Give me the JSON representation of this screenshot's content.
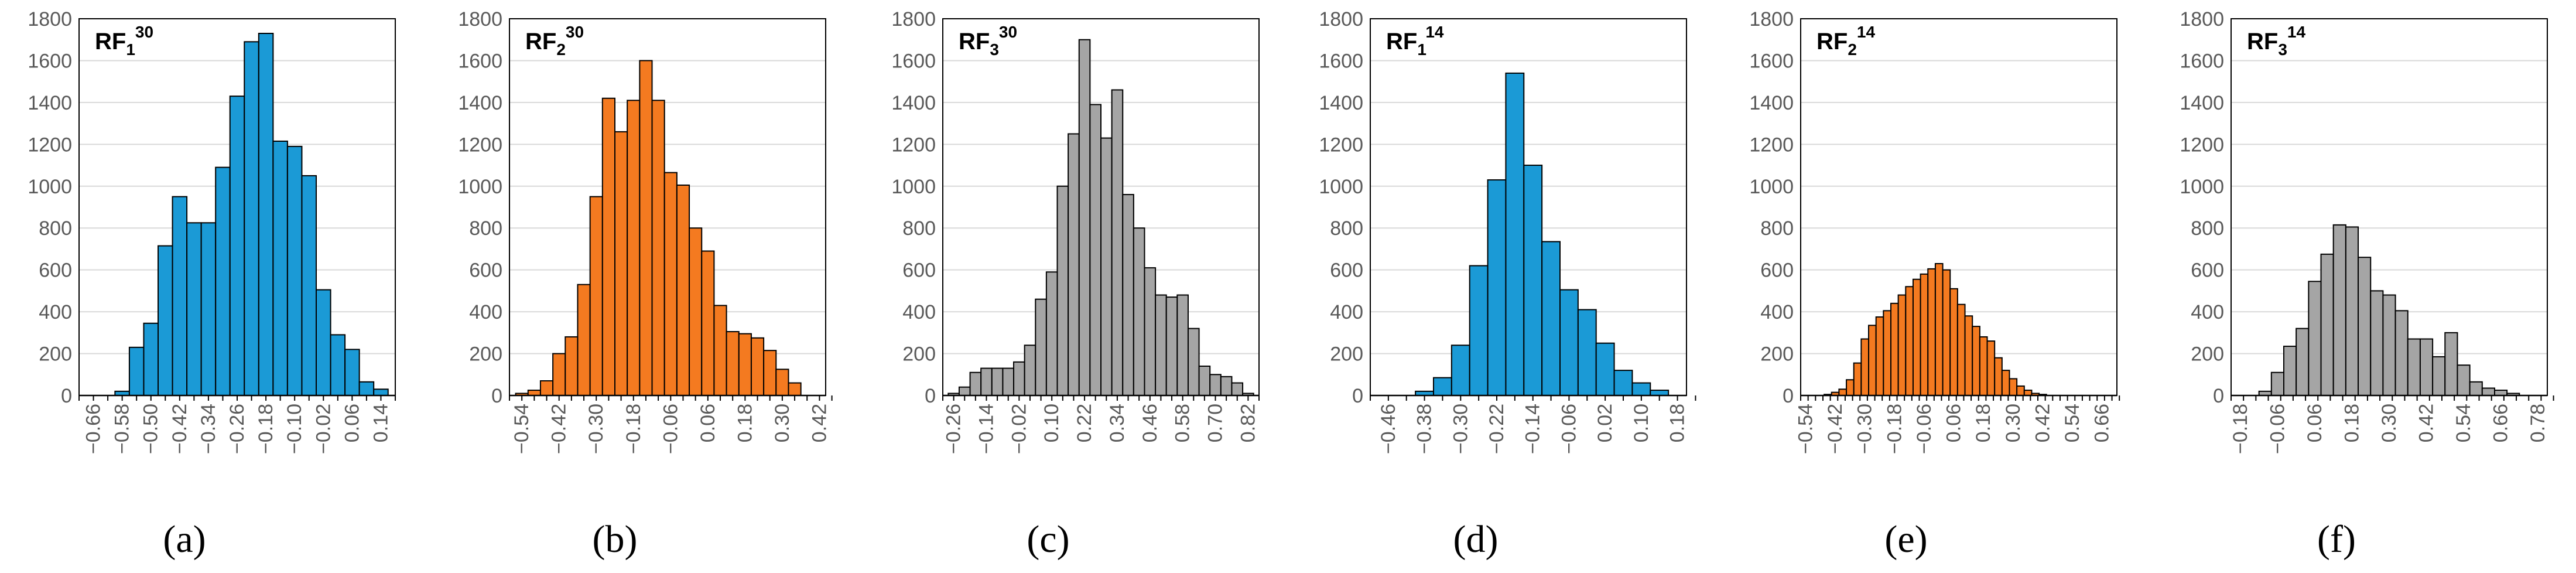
{
  "figure": {
    "panels_count": 6
  },
  "chart_data": [
    {
      "type": "bar",
      "panel": "(a)",
      "title": "RF₁³⁰",
      "title_base": "RF",
      "title_sub": "1",
      "title_sup": "30",
      "color": "#1B9AD6",
      "ylim": [
        0,
        1800
      ],
      "yticks": [
        0,
        200,
        400,
        600,
        800,
        1000,
        1200,
        1400,
        1600,
        1800
      ],
      "xlim": [
        -0.7,
        0.18
      ],
      "bin_width": 0.04,
      "xtick_labels": [
        "−0.66",
        "−0.58",
        "−0.50",
        "−0.42",
        "−0.34",
        "−0.26",
        "−0.18",
        "−0.10",
        "−0.02",
        "0.06",
        "0.14"
      ],
      "xtick_values": [
        -0.66,
        -0.58,
        -0.5,
        -0.42,
        -0.34,
        -0.26,
        -0.18,
        -0.1,
        -0.02,
        0.06,
        0.14
      ],
      "bin_centers": [
        -0.58,
        -0.54,
        -0.5,
        -0.46,
        -0.42,
        -0.38,
        -0.34,
        -0.3,
        -0.26,
        -0.22,
        -0.18,
        -0.14,
        -0.1,
        -0.06,
        -0.02,
        0.02,
        0.06,
        0.1,
        0.14
      ],
      "values": [
        20,
        230,
        345,
        715,
        950,
        825,
        825,
        1090,
        1430,
        1690,
        1730,
        1215,
        1190,
        1050,
        505,
        290,
        220,
        65,
        30
      ]
    },
    {
      "type": "bar",
      "panel": "(b)",
      "title": "RF₂³⁰",
      "title_base": "RF",
      "title_sub": "2",
      "title_sup": "30",
      "color": "#F47A20",
      "ylim": [
        0,
        1800
      ],
      "yticks": [
        0,
        200,
        400,
        600,
        800,
        1000,
        1200,
        1400,
        1600,
        1800
      ],
      "xlim": [
        -0.58,
        0.44
      ],
      "bin_width": 0.04,
      "xtick_labels": [
        "−0.54",
        "−0.42",
        "−0.30",
        "−0.18",
        "−0.06",
        "0.06",
        "0.18",
        "0.30",
        "0.42"
      ],
      "xtick_values": [
        -0.54,
        -0.42,
        -0.3,
        -0.18,
        -0.06,
        0.06,
        0.18,
        0.3,
        0.42
      ],
      "bin_centers": [
        -0.54,
        -0.5,
        -0.46,
        -0.42,
        -0.38,
        -0.34,
        -0.3,
        -0.26,
        -0.22,
        -0.18,
        -0.14,
        -0.1,
        -0.06,
        -0.02,
        0.02,
        0.06,
        0.1,
        0.14,
        0.18,
        0.22,
        0.26,
        0.3,
        0.34
      ],
      "values": [
        10,
        25,
        70,
        200,
        280,
        530,
        950,
        1420,
        1260,
        1410,
        1600,
        1410,
        1065,
        1005,
        800,
        690,
        430,
        305,
        295,
        275,
        215,
        125,
        60
      ]
    },
    {
      "type": "bar",
      "panel": "(c)",
      "title": "RF₃³⁰",
      "title_base": "RF",
      "title_sub": "3",
      "title_sup": "30",
      "color": "#A5A5A5",
      "ylim": [
        0,
        1800
      ],
      "yticks": [
        0,
        200,
        400,
        600,
        800,
        1000,
        1200,
        1400,
        1600,
        1800
      ],
      "xlim": [
        -0.3,
        0.86
      ],
      "bin_width": 0.04,
      "xtick_labels": [
        "−0.26",
        "−0.14",
        "−0.02",
        "0.10",
        "0.22",
        "0.34",
        "0.46",
        "0.58",
        "0.70",
        "0.82"
      ],
      "xtick_values": [
        -0.26,
        -0.14,
        -0.02,
        0.1,
        0.22,
        0.34,
        0.46,
        0.58,
        0.7,
        0.82
      ],
      "bin_centers": [
        -0.26,
        -0.22,
        -0.18,
        -0.14,
        -0.1,
        -0.06,
        -0.02,
        0.02,
        0.06,
        0.1,
        0.14,
        0.18,
        0.22,
        0.26,
        0.3,
        0.34,
        0.38,
        0.42,
        0.46,
        0.5,
        0.54,
        0.58,
        0.62,
        0.66,
        0.7,
        0.74,
        0.78,
        0.82
      ],
      "values": [
        10,
        40,
        110,
        130,
        130,
        130,
        160,
        240,
        460,
        590,
        1000,
        1250,
        1700,
        1390,
        1230,
        1460,
        960,
        800,
        610,
        480,
        470,
        480,
        320,
        140,
        100,
        90,
        60,
        10
      ]
    },
    {
      "type": "bar",
      "panel": "(d)",
      "title": "RF₁¹⁴",
      "title_base": "RF",
      "title_sub": "1",
      "title_sup": "14",
      "color": "#1B9AD6",
      "ylim": [
        0,
        1800
      ],
      "yticks": [
        0,
        200,
        400,
        600,
        800,
        1000,
        1200,
        1400,
        1600,
        1800
      ],
      "xlim": [
        -0.5,
        0.2
      ],
      "bin_width": 0.04,
      "xtick_labels": [
        "−0.46",
        "−0.38",
        "−0.30",
        "−0.22",
        "−0.14",
        "−0.06",
        "0.02",
        "0.10",
        "0.18"
      ],
      "xtick_values": [
        -0.46,
        -0.38,
        -0.3,
        -0.22,
        -0.14,
        -0.06,
        0.02,
        0.1,
        0.18
      ],
      "bin_centers": [
        -0.38,
        -0.34,
        -0.3,
        -0.26,
        -0.22,
        -0.18,
        -0.14,
        -0.1,
        -0.06,
        -0.02,
        0.02,
        0.06,
        0.1,
        0.14
      ],
      "values": [
        20,
        85,
        240,
        620,
        1030,
        1540,
        1100,
        735,
        505,
        410,
        250,
        120,
        60,
        25
      ]
    },
    {
      "type": "bar",
      "panel": "(e)",
      "title": "RF₂¹⁴",
      "title_base": "RF",
      "title_sub": "2",
      "title_sup": "14",
      "color": "#F47A20",
      "ylim": [
        0,
        1800
      ],
      "yticks": [
        0,
        200,
        400,
        600,
        800,
        1000,
        1200,
        1400,
        1600,
        1800
      ],
      "xlim": [
        -0.56,
        0.72
      ],
      "bin_width": 0.03,
      "xtick_labels": [
        "−0.54",
        "−0.42",
        "−0.30",
        "−0.18",
        "−0.06",
        "0.06",
        "0.18",
        "0.30",
        "0.42",
        "0.54",
        "0.66"
      ],
      "xtick_values": [
        -0.54,
        -0.42,
        -0.3,
        -0.18,
        -0.06,
        0.06,
        0.18,
        0.3,
        0.42,
        0.54,
        0.66
      ],
      "bin_centers": [
        -0.45,
        -0.42,
        -0.39,
        -0.36,
        -0.33,
        -0.3,
        -0.27,
        -0.24,
        -0.21,
        -0.18,
        -0.15,
        -0.12,
        -0.09,
        -0.06,
        -0.03,
        0.0,
        0.03,
        0.06,
        0.09,
        0.12,
        0.15,
        0.18,
        0.21,
        0.24,
        0.27,
        0.3,
        0.33,
        0.36,
        0.39,
        0.42
      ],
      "values": [
        5,
        15,
        30,
        75,
        155,
        270,
        335,
        375,
        405,
        440,
        480,
        520,
        555,
        580,
        605,
        630,
        600,
        510,
        435,
        380,
        330,
        280,
        260,
        180,
        120,
        80,
        45,
        25,
        10,
        5
      ]
    },
    {
      "type": "bar",
      "panel": "(f)",
      "title": "RF₃¹⁴",
      "title_base": "RF",
      "title_sub": "3",
      "title_sup": "14",
      "color": "#A5A5A5",
      "ylim": [
        0,
        1800
      ],
      "yticks": [
        0,
        200,
        400,
        600,
        800,
        1000,
        1200,
        1400,
        1600,
        1800
      ],
      "xlim": [
        -0.21,
        0.81
      ],
      "bin_width": 0.04,
      "xtick_labels": [
        "−0.18",
        "−0.06",
        "0.06",
        "0.18",
        "0.30",
        "0.42",
        "0.54",
        "0.66",
        "0.78"
      ],
      "xtick_values": [
        -0.18,
        -0.06,
        0.06,
        0.18,
        0.3,
        0.42,
        0.54,
        0.66,
        0.78
      ],
      "bin_centers": [
        -0.1,
        -0.06,
        -0.02,
        0.02,
        0.06,
        0.1,
        0.14,
        0.18,
        0.22,
        0.26,
        0.3,
        0.34,
        0.38,
        0.42,
        0.46,
        0.5,
        0.54,
        0.58,
        0.62,
        0.66,
        0.7
      ],
      "values": [
        20,
        110,
        235,
        320,
        545,
        675,
        815,
        805,
        660,
        500,
        480,
        405,
        270,
        270,
        185,
        300,
        145,
        65,
        35,
        25,
        10
      ]
    }
  ]
}
